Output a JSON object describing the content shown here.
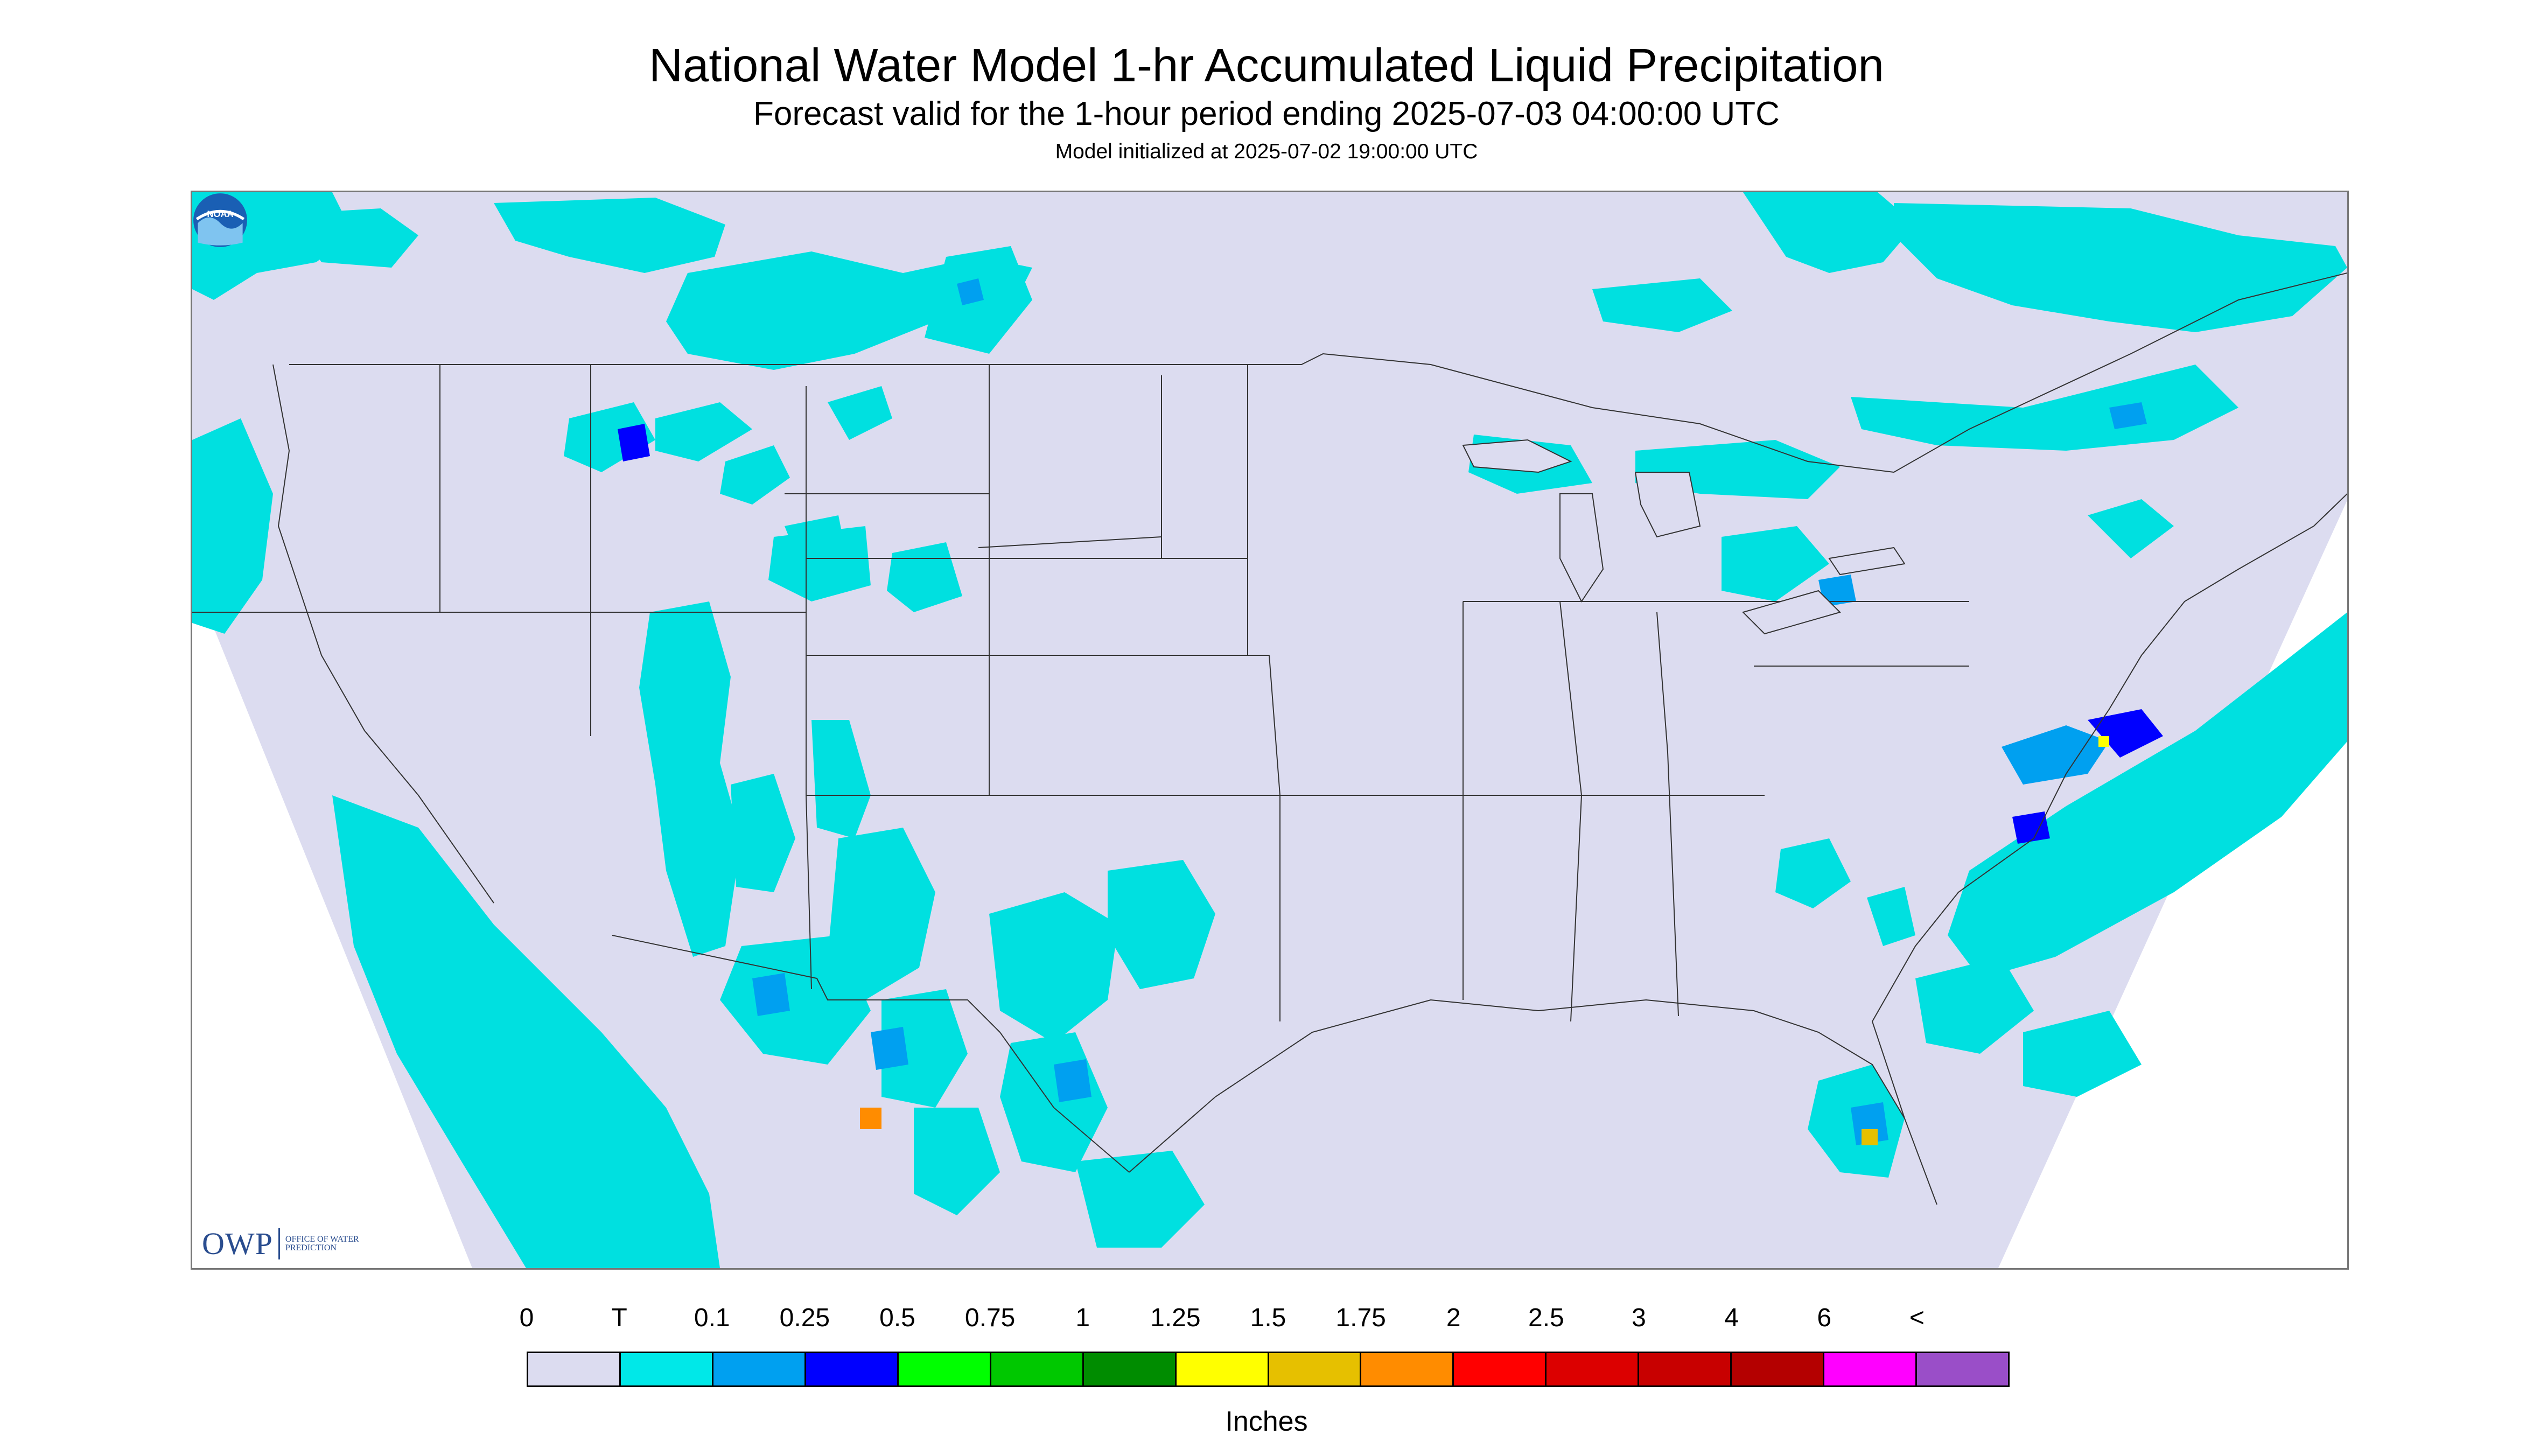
{
  "title": "National Water Model 1-hr Accumulated Liquid Precipitation",
  "subtitle": "Forecast valid for the 1-hour period ending 2025-07-03 04:00:00 UTC",
  "model_init": "Model initialized at 2025-07-02 19:00:00 UTC",
  "logos": {
    "owp_word": "OWP",
    "owp_sub": "OFFICE OF WATER PREDICTION",
    "noaa": "NOAA"
  },
  "colors": {
    "background": "#dcdcf0",
    "outside": "#ffffff",
    "trace": "#00e0e0",
    "light": "#00a0f0",
    "heavy": "#0000ff",
    "border": "#333333"
  },
  "legend": {
    "labels": [
      "0",
      "T",
      "0.1",
      "0.25",
      "0.5",
      "0.75",
      "1",
      "1.25",
      "1.5",
      "1.75",
      "2",
      "2.5",
      "3",
      "4",
      "6",
      "<"
    ],
    "colors": [
      "#dcdcf0",
      "#00e8e8",
      "#00a0f0",
      "#0000ff",
      "#00ff00",
      "#00c800",
      "#008c00",
      "#ffff00",
      "#e6c000",
      "#ff8c00",
      "#ff0000",
      "#dc0000",
      "#c80000",
      "#b40000",
      "#ff00ff",
      "#9a4ec8"
    ],
    "unit": "Inches"
  }
}
